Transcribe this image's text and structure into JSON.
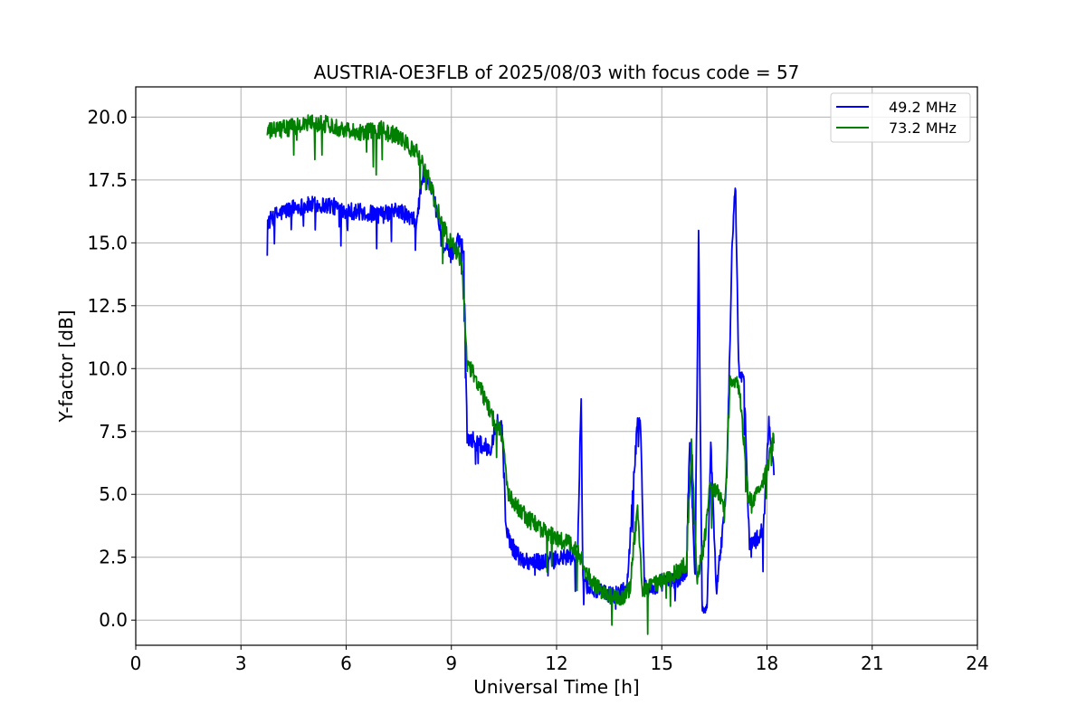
{
  "chart_data": {
    "type": "line",
    "title": "AUSTRIA-OE3FLB of 2025/08/03 with focus code = 57",
    "xlabel": "Universal Time [h]",
    "ylabel": "Y-factor [dB]",
    "xlim": [
      0,
      24
    ],
    "ylim": [
      -1,
      21.2
    ],
    "x_ticks": [
      0,
      3,
      6,
      9,
      12,
      15,
      18,
      21,
      24
    ],
    "y_ticks": [
      0.0,
      2.5,
      5.0,
      7.5,
      10.0,
      12.5,
      15.0,
      17.5,
      20.0
    ],
    "x_tick_labels": [
      "0",
      "3",
      "6",
      "9",
      "12",
      "15",
      "18",
      "21",
      "24"
    ],
    "y_tick_labels": [
      "0.0",
      "2.5",
      "5.0",
      "7.5",
      "10.0",
      "12.5",
      "15.0",
      "17.5",
      "20.0"
    ],
    "grid": true,
    "legend_position": "top-right",
    "series": [
      {
        "name": "49.2 MHz",
        "color": "#0000ff",
        "x": [
          3.75,
          4.0,
          4.5,
          5.0,
          5.5,
          6.0,
          6.5,
          7.0,
          7.5,
          8.0,
          8.2,
          8.5,
          8.8,
          9.0,
          9.2,
          9.35,
          9.45,
          9.8,
          10.1,
          10.3,
          10.45,
          10.55,
          10.7,
          11.0,
          11.5,
          12.0,
          12.3,
          12.6,
          12.7,
          12.75,
          12.9,
          13.2,
          13.6,
          14.0,
          14.3,
          14.4,
          14.5,
          14.6,
          14.8,
          15.0,
          15.5,
          15.7,
          15.8,
          15.95,
          16.05,
          16.15,
          16.3,
          16.4,
          16.55,
          16.7,
          16.85,
          17.0,
          17.1,
          17.2,
          17.35,
          17.5,
          17.7,
          17.9,
          18.05,
          18.2
        ],
        "y": [
          15.8,
          16.1,
          16.4,
          16.5,
          16.5,
          16.3,
          16.2,
          16.1,
          16.3,
          15.8,
          17.8,
          16.8,
          14.8,
          14.5,
          15.2,
          14.8,
          7.3,
          7.0,
          6.8,
          7.9,
          7.7,
          3.8,
          3.0,
          2.4,
          2.3,
          2.4,
          2.5,
          2.6,
          9.0,
          1.7,
          1.3,
          1.1,
          1.0,
          1.2,
          7.7,
          7.9,
          1.5,
          1.2,
          1.3,
          1.5,
          1.6,
          2.0,
          7.5,
          1.6,
          15.3,
          0.3,
          0.8,
          7.2,
          1.2,
          3.0,
          5.5,
          14.5,
          17.4,
          9.8,
          9.4,
          3.0,
          3.2,
          3.6,
          7.8,
          6.0
        ]
      },
      {
        "name": "73.2 MHz",
        "color": "#008000",
        "x": [
          3.75,
          4.0,
          4.5,
          5.0,
          5.5,
          6.0,
          6.5,
          7.0,
          7.5,
          8.0,
          8.3,
          8.6,
          8.9,
          9.1,
          9.3,
          9.45,
          9.6,
          9.9,
          10.2,
          10.45,
          10.6,
          10.8,
          11.2,
          11.6,
          12.0,
          12.4,
          12.7,
          13.0,
          13.4,
          13.8,
          14.1,
          14.3,
          14.45,
          14.6,
          14.9,
          15.3,
          15.7,
          15.85,
          16.0,
          16.2,
          16.4,
          16.6,
          16.8,
          16.95,
          17.1,
          17.25,
          17.45,
          17.6,
          17.8,
          18.0,
          18.2
        ],
        "y": [
          19.4,
          19.5,
          19.6,
          19.8,
          19.7,
          19.5,
          19.4,
          19.5,
          19.2,
          18.6,
          17.8,
          16.3,
          15.2,
          14.8,
          14.2,
          10.0,
          9.9,
          9.0,
          8.0,
          7.4,
          5.0,
          4.6,
          4.0,
          3.6,
          3.2,
          3.0,
          2.5,
          1.5,
          1.0,
          0.8,
          1.3,
          4.5,
          1.0,
          1.3,
          1.5,
          1.8,
          2.2,
          7.0,
          1.5,
          3.0,
          5.5,
          5.0,
          4.5,
          9.5,
          9.6,
          8.7,
          5.0,
          4.8,
          5.2,
          6.0,
          7.3
        ]
      }
    ]
  }
}
